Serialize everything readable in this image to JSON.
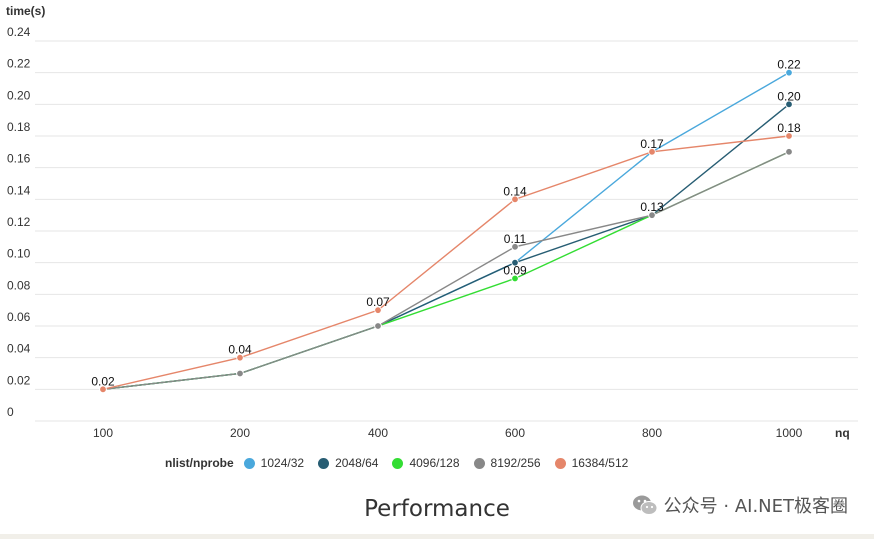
{
  "chart_data": {
    "type": "line",
    "title": "",
    "caption": "Performance",
    "xlabel": "nq",
    "ylabel": "time(s)",
    "x": [
      100,
      200,
      400,
      600,
      800,
      1000
    ],
    "y_ticks": [
      "0",
      "0.02",
      "0.04",
      "0.06",
      "0.08",
      "0.10",
      "0.12",
      "0.14",
      "0.16",
      "0.18",
      "0.20",
      "0.22",
      "0.24"
    ],
    "ylim": [
      0,
      0.24
    ],
    "grid": true,
    "legend_title": "nlist/nprobe",
    "legend_position": "bottom",
    "series": [
      {
        "name": "1024/32",
        "color": "#4aa8dc",
        "values": [
          0.02,
          0.03,
          0.06,
          0.1,
          0.17,
          0.22
        ]
      },
      {
        "name": "2048/64",
        "color": "#275d73",
        "values": [
          0.02,
          0.03,
          0.06,
          0.1,
          0.13,
          0.2
        ]
      },
      {
        "name": "4096/128",
        "color": "#33dd33",
        "values": [
          0.02,
          0.03,
          0.06,
          0.09,
          0.13,
          0.17
        ]
      },
      {
        "name": "8192/256",
        "color": "#888888",
        "values": [
          0.02,
          0.03,
          0.06,
          0.11,
          0.13,
          0.17
        ]
      },
      {
        "name": "16384/512",
        "color": "#e5866a",
        "values": [
          0.02,
          0.04,
          0.07,
          0.14,
          0.17,
          0.18
        ]
      }
    ],
    "data_labels": [
      {
        "x": 100,
        "text": "0.02"
      },
      {
        "x": 200,
        "text": "0.04"
      },
      {
        "x": 400,
        "text": "0.07"
      },
      {
        "x": 600,
        "text": "0.14"
      },
      {
        "x": 600,
        "text": "0.11"
      },
      {
        "x": 600,
        "text": "0.09"
      },
      {
        "x": 800,
        "text": "0.17"
      },
      {
        "x": 800,
        "text": "0.13"
      },
      {
        "x": 1000,
        "text": "0.22"
      },
      {
        "x": 1000,
        "text": "0.20"
      },
      {
        "x": 1000,
        "text": "0.18"
      }
    ]
  },
  "watermark": {
    "text": "公众号 · AI.NET极客圈",
    "icon": "wechat-icon"
  }
}
